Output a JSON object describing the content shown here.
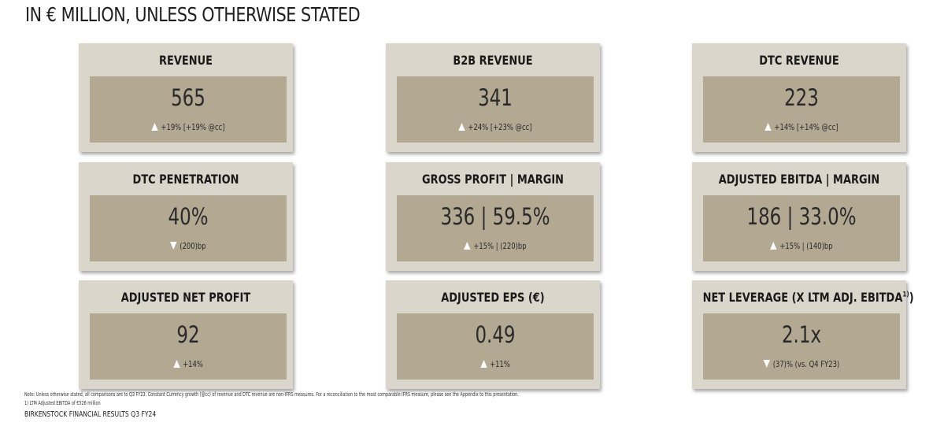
{
  "header": {
    "title": "IN € MILLION, UNLESS OTHERWISE STATED"
  },
  "colors": {
    "card_outer": "#dbd6cb",
    "card_inner": "#b3a892",
    "arrow": "#ffffff"
  },
  "cards": [
    {
      "title": "REVENUE",
      "value": "565",
      "change": "+19% [+19% @cc]",
      "direction": "up"
    },
    {
      "title": "B2B REVENUE",
      "value": "341",
      "change": "+24% [+23% @cc]",
      "direction": "up"
    },
    {
      "title": "DTC REVENUE",
      "value": "223",
      "change": "+14% [+14% @cc]",
      "direction": "up"
    },
    {
      "title": "DTC PENETRATION",
      "value": "40%",
      "change": "(200)bp",
      "direction": "down"
    },
    {
      "title": "GROSS PROFIT | MARGIN",
      "value": "336 | 59.5%",
      "change": "+15% | (220)bp",
      "direction": "up"
    },
    {
      "title": "ADJUSTED EBITDA | MARGIN",
      "value": "186 | 33.0%",
      "change": "+15% | (140)bp",
      "direction": "up"
    },
    {
      "title": "ADJUSTED NET PROFIT",
      "value": "92",
      "change": "+14%",
      "direction": "up"
    },
    {
      "title": "ADJUSTED EPS (€)",
      "value": "0.49",
      "change": "+11%",
      "direction": "up"
    },
    {
      "title": "NET LEVERAGE (X LTM ADJ. EBITDA",
      "title_sup": "1)",
      "title_suffix": ")",
      "value": "2.1x",
      "change": "(37)% (vs. Q4 FY23)",
      "direction": "down"
    }
  ],
  "footer": {
    "note": "Note: Unless otherwise stated, all comparisons are to Q3 FY23. Constant Currency growth (@cc) of revenue and DTC revenue are non-IFRS measures. For a reconciliation to the most comparable IFRS measure, please see the Appendix to this presentation.",
    "footnote_1": "1) LTM Adjusted EBITDA of €526 million",
    "brand": "BIRKENSTOCK FINANCIAL RESULTS Q3 FY24"
  }
}
